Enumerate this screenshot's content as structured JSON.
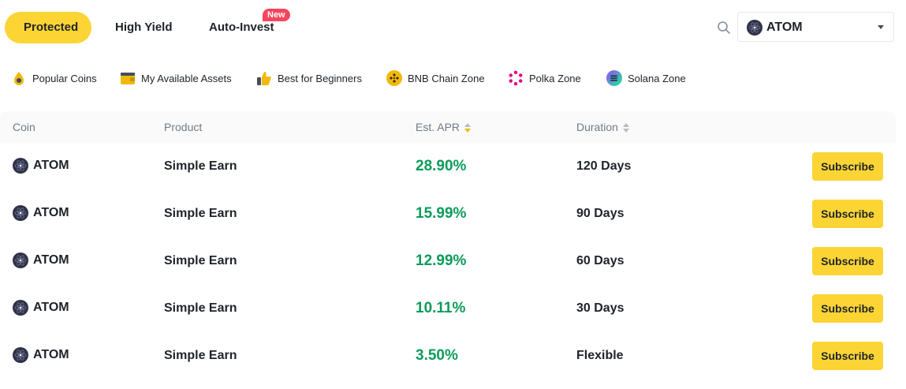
{
  "tabs": [
    {
      "label": "Protected",
      "active": true
    },
    {
      "label": "High Yield",
      "active": false
    },
    {
      "label": "Auto-Invest",
      "active": false,
      "badge": "New"
    }
  ],
  "coin_select": {
    "value": "ATOM",
    "icon": "atom-icon"
  },
  "search": {
    "icon": "search-icon"
  },
  "zones": [
    {
      "label": "Popular Coins",
      "icon": "popular-coins-icon"
    },
    {
      "label": "My Available Assets",
      "icon": "wallet-icon"
    },
    {
      "label": "Best for Beginners",
      "icon": "thumbs-up-icon"
    },
    {
      "label": "BNB Chain Zone",
      "icon": "bnb-icon"
    },
    {
      "label": "Polka Zone",
      "icon": "polkadot-icon"
    },
    {
      "label": "Solana Zone",
      "icon": "solana-icon"
    }
  ],
  "table": {
    "headers": {
      "coin": "Coin",
      "product": "Product",
      "apr": "Est. APR",
      "duration": "Duration"
    },
    "subscribe_label": "Subscribe",
    "rows": [
      {
        "coin": "ATOM",
        "product": "Simple Earn",
        "apr": "28.90%",
        "duration": "120 Days"
      },
      {
        "coin": "ATOM",
        "product": "Simple Earn",
        "apr": "15.99%",
        "duration": "90 Days"
      },
      {
        "coin": "ATOM",
        "product": "Simple Earn",
        "apr": "12.99%",
        "duration": "60 Days"
      },
      {
        "coin": "ATOM",
        "product": "Simple Earn",
        "apr": "10.11%",
        "duration": "30 Days"
      },
      {
        "coin": "ATOM",
        "product": "Simple Earn",
        "apr": "3.50%",
        "duration": "Flexible"
      }
    ]
  },
  "colors": {
    "accent": "#fcd535",
    "apr_green": "#0b9b5b",
    "badge_red": "#f6465d"
  }
}
